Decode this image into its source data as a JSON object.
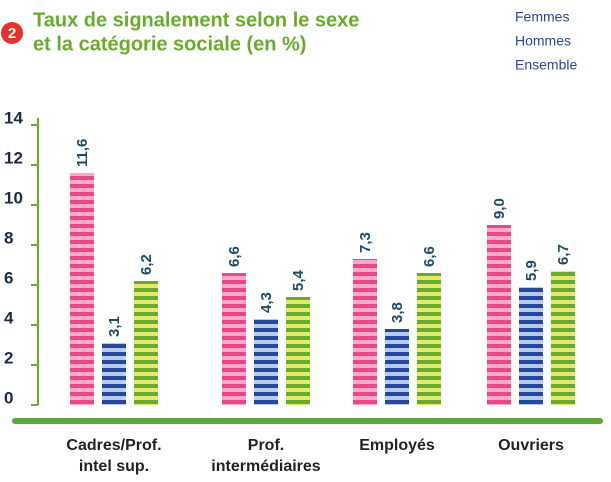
{
  "chart_data": {
    "type": "bar",
    "badge": "2",
    "title": [
      "Taux de signalement selon le sexe",
      "et la catégorie sociale (en %)"
    ],
    "categories": [
      [
        "Cadres/Prof.",
        "intel sup."
      ],
      [
        "Prof.",
        "intermédiaires"
      ],
      [
        "Employés"
      ],
      [
        "Ouvriers"
      ]
    ],
    "series": [
      {
        "name": "Femmes",
        "color": "#e8478a",
        "values": [
          11.6,
          6.6,
          7.3,
          9.0
        ],
        "value_labels": [
          "11,6",
          "6,6",
          "7,3",
          "9,0"
        ]
      },
      {
        "name": "Hommes",
        "color": "#27479a",
        "values": [
          3.1,
          4.3,
          3.8,
          5.9
        ],
        "value_labels": [
          "3,1",
          "4,3",
          "3,8",
          "5,9"
        ]
      },
      {
        "name": "Ensemble",
        "color": "#6aab2e",
        "values": [
          6.2,
          5.4,
          6.6,
          6.7
        ],
        "value_labels": [
          "6,2",
          "5,4",
          "6,6",
          "6,7"
        ]
      }
    ],
    "ylim": [
      0,
      14
    ],
    "yticks": [
      0,
      2,
      4,
      6,
      8,
      10,
      12,
      14
    ]
  }
}
